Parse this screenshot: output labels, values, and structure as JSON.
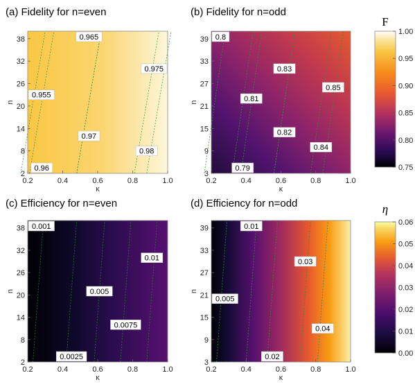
{
  "colorbars": [
    {
      "title": "F",
      "ticks": [
        "1.00",
        "0.95",
        "0.90",
        "0.85",
        "0.80",
        "0.75"
      ],
      "vmin": 0.75,
      "vmax": 1.0,
      "colormap": "inferno"
    },
    {
      "title": "η",
      "ticks": [
        "0.06",
        "0.05",
        "0.04",
        "0.03",
        "0.02",
        "0.01",
        "0.00"
      ],
      "vmin": 0.0,
      "vmax": 0.06,
      "colormap": "inferno"
    }
  ],
  "chart_data": [
    {
      "type": "heatmap",
      "title": "(a) Fidelity for n=even",
      "xlabel": "κ",
      "ylabel": "n",
      "xlim": [
        0.2,
        1.0
      ],
      "ylim": [
        2,
        40
      ],
      "xticks": [
        "0.2",
        "0.4",
        "0.6",
        "0.8",
        "1.0"
      ],
      "yticks": [
        "2",
        "8",
        "14",
        "20",
        "26",
        "32",
        "38"
      ],
      "colorscale": [
        0.75,
        1.0
      ],
      "contours": [
        {
          "label": "0.955",
          "x": 0.23,
          "y": 23
        },
        {
          "label": "0.96",
          "x": 0.28,
          "y": 3
        },
        {
          "label": "0.965",
          "x": 0.55,
          "y": 40
        },
        {
          "label": "0.97",
          "x": 0.55,
          "y": 12
        },
        {
          "label": "0.975",
          "x": 0.95,
          "y": 30
        },
        {
          "label": "0.98",
          "x": 0.88,
          "y": 8
        }
      ]
    },
    {
      "type": "heatmap",
      "title": "(b) Fidelity for n=odd",
      "xlabel": "κ",
      "ylabel": "n",
      "xlim": [
        0.2,
        1.0
      ],
      "ylim": [
        3,
        41
      ],
      "xticks": [
        "0.2",
        "0.4",
        "0.6",
        "0.8",
        "1.0"
      ],
      "yticks": [
        "3",
        "9",
        "15",
        "21",
        "27",
        "33",
        "39"
      ],
      "colorscale": [
        0.75,
        1.0
      ],
      "contours": [
        {
          "label": "0.8",
          "x": 0.22,
          "y": 40
        },
        {
          "label": "0.79",
          "x": 0.38,
          "y": 4
        },
        {
          "label": "0.81",
          "x": 0.43,
          "y": 23
        },
        {
          "label": "0.82",
          "x": 0.62,
          "y": 14
        },
        {
          "label": "0.83",
          "x": 0.62,
          "y": 31
        },
        {
          "label": "0.84",
          "x": 0.83,
          "y": 10
        },
        {
          "label": "0.85",
          "x": 0.9,
          "y": 26
        }
      ]
    },
    {
      "type": "heatmap",
      "title": "(c) Efficiency for n=even",
      "xlabel": "κ",
      "ylabel": "n",
      "xlim": [
        0.2,
        1.0
      ],
      "ylim": [
        2,
        40
      ],
      "xticks": [
        "0.2",
        "0.4",
        "0.6",
        "0.8",
        "1.0"
      ],
      "yticks": [
        "2",
        "8",
        "14",
        "20",
        "26",
        "32",
        "38"
      ],
      "colorscale": [
        0.0,
        0.06
      ],
      "contours": [
        {
          "label": "0.001",
          "x": 0.26,
          "y": 39
        },
        {
          "label": "0.0025",
          "x": 0.45,
          "y": 3
        },
        {
          "label": "0.005",
          "x": 0.61,
          "y": 21
        },
        {
          "label": "0.0075",
          "x": 0.76,
          "y": 12
        },
        {
          "label": "0.01",
          "x": 0.91,
          "y": 30
        }
      ]
    },
    {
      "type": "heatmap",
      "title": "(d) Efficiency for n=odd",
      "xlabel": "κ",
      "ylabel": "n",
      "xlim": [
        0.2,
        1.0
      ],
      "ylim": [
        3,
        41
      ],
      "xticks": [
        "0.2",
        "0.4",
        "0.6",
        "0.8",
        "1.0"
      ],
      "yticks": [
        "3",
        "9",
        "15",
        "21",
        "27",
        "33",
        "39"
      ],
      "colorscale": [
        0.0,
        0.06
      ],
      "contours": [
        {
          "label": "0.005",
          "x": 0.26,
          "y": 20
        },
        {
          "label": "0.01",
          "x": 0.43,
          "y": 40
        },
        {
          "label": "0.02",
          "x": 0.55,
          "y": 4
        },
        {
          "label": "0.03",
          "x": 0.74,
          "y": 30
        },
        {
          "label": "0.04",
          "x": 0.84,
          "y": 12
        }
      ]
    }
  ]
}
